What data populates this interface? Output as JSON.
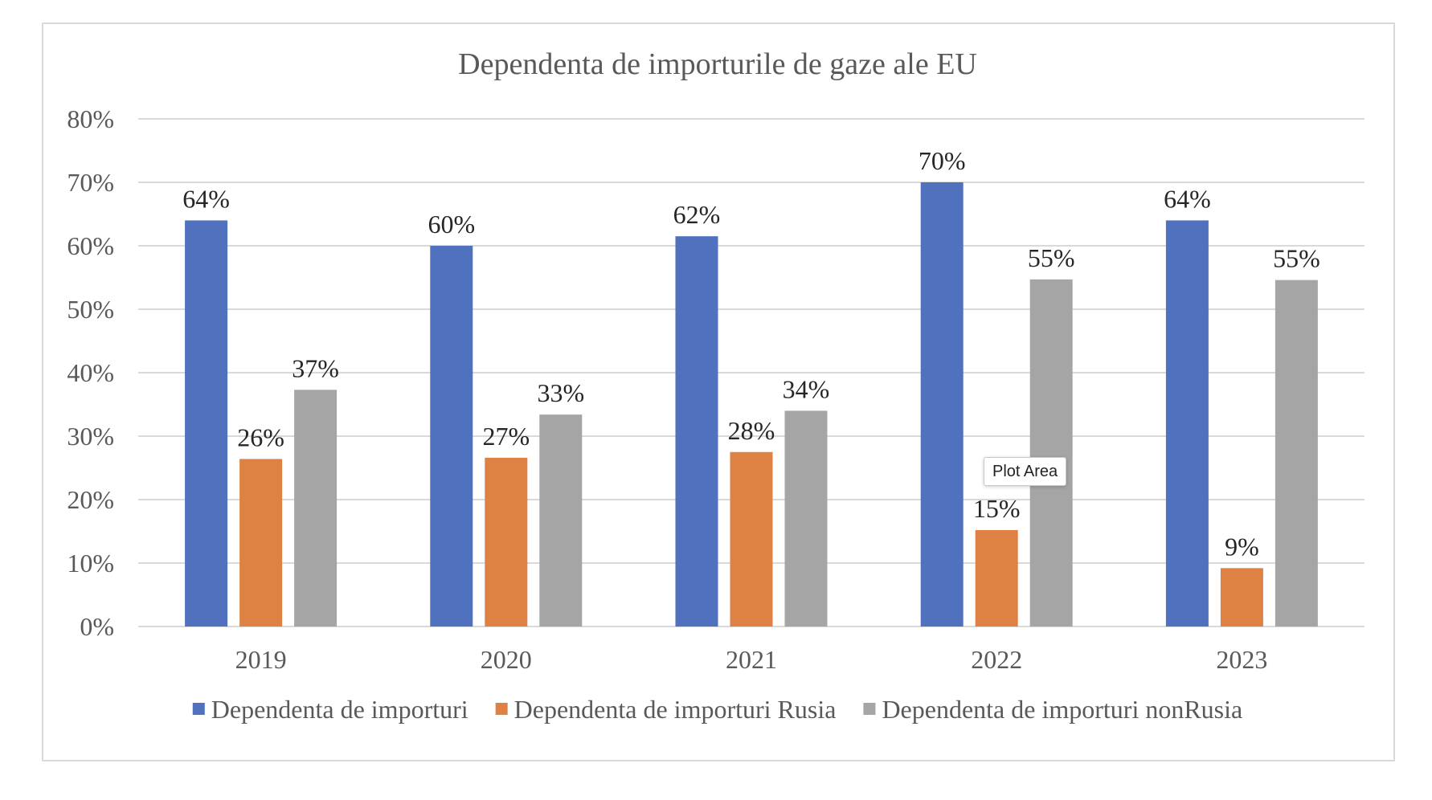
{
  "chart_data": {
    "type": "bar",
    "title": "Dependenta de importurile de gaze ale EU",
    "categories": [
      "2019",
      "2020",
      "2021",
      "2022",
      "2023"
    ],
    "series": [
      {
        "name": "Dependenta de importuri",
        "color": "#4F71BE",
        "values": [
          64,
          60,
          61.5,
          70,
          64
        ],
        "labels": [
          "64%",
          "60%",
          "62%",
          "70%",
          "64%"
        ]
      },
      {
        "name": "Dependenta de importuri Rusia",
        "color": "#DE8244",
        "values": [
          26.4,
          26.6,
          27.5,
          15.2,
          9.2
        ],
        "labels": [
          "26%",
          "27%",
          "28%",
          "15%",
          "9%"
        ]
      },
      {
        "name": "Dependenta de importuri nonRusia",
        "color": "#A5A5A5",
        "values": [
          37.3,
          33.4,
          34,
          54.7,
          54.6
        ],
        "labels": [
          "37%",
          "33%",
          "34%",
          "55%",
          "55%"
        ]
      }
    ],
    "ylim": [
      0,
      80
    ],
    "yticks": [
      0,
      10,
      20,
      30,
      40,
      50,
      60,
      70,
      80
    ],
    "ytick_labels": [
      "0%",
      "10%",
      "20%",
      "30%",
      "40%",
      "50%",
      "60%",
      "70%",
      "80%"
    ],
    "xlabel": "",
    "ylabel": "",
    "grid": true,
    "legend_position": "bottom"
  },
  "tooltip": {
    "text": "Plot Area"
  }
}
